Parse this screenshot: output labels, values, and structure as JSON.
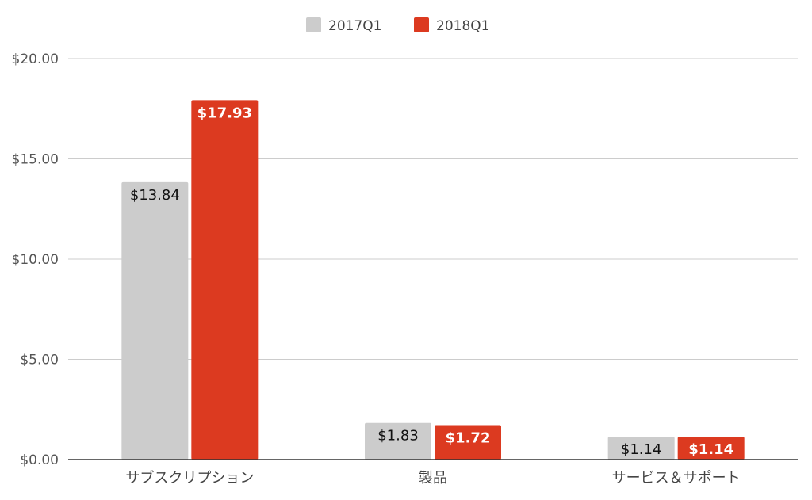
{
  "chart_data": {
    "type": "bar",
    "title": "",
    "xlabel": "",
    "ylabel": "",
    "categories": [
      "サブスクリプション",
      "製品",
      "サービス＆サポート"
    ],
    "series": [
      {
        "name": "2017Q1",
        "values": [
          13.84,
          1.83,
          1.14
        ],
        "labels": [
          "$13.84",
          "$1.83",
          "$1.14"
        ],
        "color": "#cccccc",
        "label_color": "#111111"
      },
      {
        "name": "2018Q1",
        "values": [
          17.93,
          1.72,
          1.14
        ],
        "labels": [
          "$17.93",
          "$1.72",
          "$1.14"
        ],
        "color": "#dc3a20",
        "label_color": "#ffffff"
      }
    ],
    "ylim": [
      0,
      20
    ],
    "yticks": [
      0,
      5,
      10,
      15,
      20
    ],
    "ytick_labels": [
      "$0.00",
      "$5.00",
      "$10.00",
      "$15.00",
      "$20.00"
    ],
    "grid": true,
    "legend_position": "top"
  }
}
